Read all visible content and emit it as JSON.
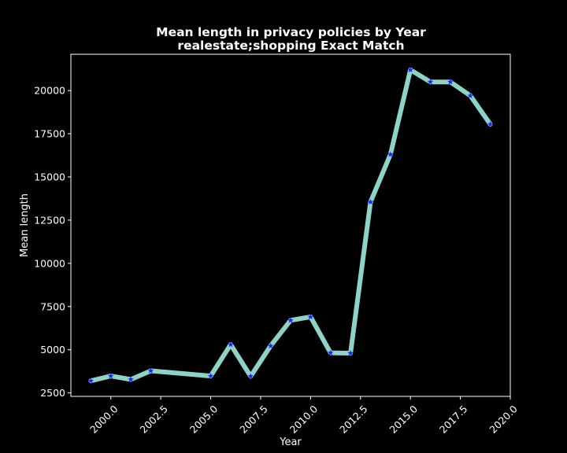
{
  "chart_data": {
    "type": "line",
    "title": "Mean length in privacy policies by Year",
    "subtitle": "realestate;shopping Exact Match",
    "xlabel": "Year",
    "ylabel": "Mean length",
    "xlim": [
      1998.0,
      2020.0
    ],
    "ylim": [
      2300,
      22100
    ],
    "xticks": [
      2000.0,
      2002.5,
      2005.0,
      2007.5,
      2010.0,
      2012.5,
      2015.0,
      2017.5,
      2020.0
    ],
    "xtick_labels": [
      "2000.0",
      "2002.5",
      "2005.0",
      "2007.5",
      "2010.0",
      "2012.5",
      "2015.0",
      "2017.5",
      "2020.0"
    ],
    "yticks": [
      2500,
      5000,
      7500,
      10000,
      12500,
      15000,
      17500,
      20000
    ],
    "ytick_labels": [
      "2500",
      "5000",
      "7500",
      "10000",
      "12500",
      "15000",
      "17500",
      "20000"
    ],
    "grid": false,
    "line_color": "#8dd3c7",
    "marker_color": "#1f1fff",
    "background": "#000000",
    "series": [
      {
        "x": [
          1999,
          2000,
          2001,
          2002,
          2005,
          2006,
          2007,
          2008,
          2009,
          2010,
          2011,
          2012,
          2013,
          2014,
          2015,
          2016,
          2017,
          2018,
          2019
        ],
        "y": [
          3200,
          3480,
          3280,
          3780,
          3480,
          5300,
          3460,
          5220,
          6700,
          6900,
          4820,
          4800,
          13550,
          16300,
          21200,
          20500,
          20500,
          19700,
          18050
        ]
      }
    ]
  }
}
